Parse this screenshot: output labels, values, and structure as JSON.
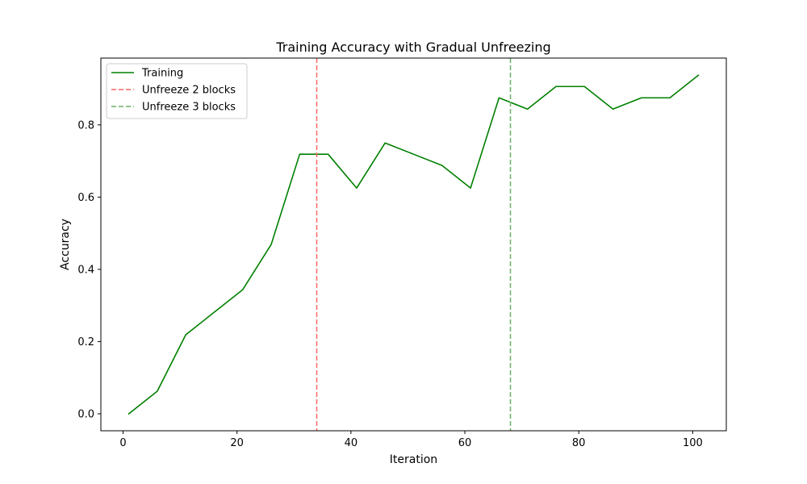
{
  "chart_data": {
    "type": "line",
    "title": "Training Accuracy with Gradual Unfreezing",
    "xlabel": "Iteration",
    "ylabel": "Accuracy",
    "xlim": [
      -3.9,
      105.9
    ],
    "ylim": [
      -0.047,
      0.985
    ],
    "xticks": [
      0,
      20,
      40,
      60,
      80,
      100
    ],
    "yticks": [
      0.0,
      0.2,
      0.4,
      0.6,
      0.8
    ],
    "xtick_labels": [
      "0",
      "20",
      "40",
      "60",
      "80",
      "100"
    ],
    "ytick_labels": [
      "0.0",
      "0.2",
      "0.4",
      "0.6",
      "0.8"
    ],
    "grid": false,
    "legend_position": "top-left",
    "series": [
      {
        "name": "Training",
        "color": "#008000",
        "style": "solid",
        "x": [
          1,
          6,
          11,
          16,
          21,
          26,
          31,
          36,
          41,
          46,
          51,
          56,
          61,
          66,
          71,
          76,
          81,
          86,
          91,
          96,
          101
        ],
        "y": [
          0.0,
          0.0625,
          0.21875,
          0.28125,
          0.34375,
          0.46875,
          0.71875,
          0.71875,
          0.625,
          0.75,
          0.71875,
          0.6875,
          0.625,
          0.875,
          0.84375,
          0.90625,
          0.90625,
          0.84375,
          0.875,
          0.875,
          0.9375
        ]
      }
    ],
    "vlines": [
      {
        "name": "Unfreeze 2 blocks",
        "x": 34,
        "color": "#ff6666",
        "style": "dashed"
      },
      {
        "name": "Unfreeze 3 blocks",
        "x": 68,
        "color": "#66b266",
        "style": "dashed"
      }
    ]
  }
}
